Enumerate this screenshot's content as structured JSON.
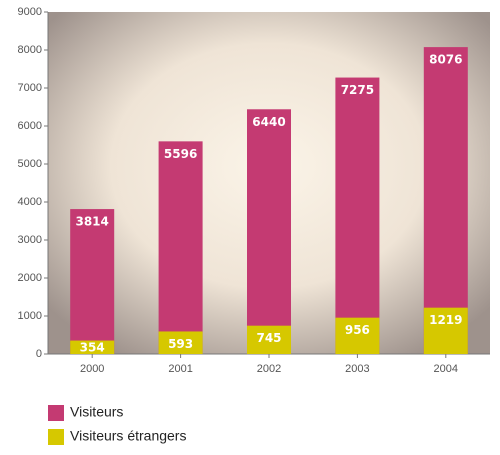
{
  "chart_data": {
    "type": "bar",
    "categories": [
      "2000",
      "2001",
      "2002",
      "2003",
      "2004"
    ],
    "series": [
      {
        "name": "Visiteurs",
        "color": "#c43a72",
        "values": [
          3814,
          5596,
          6440,
          7275,
          8076
        ]
      },
      {
        "name": "Visiteurs étrangers",
        "color": "#d6c800",
        "values": [
          354,
          593,
          745,
          956,
          1219
        ]
      }
    ],
    "ylim": [
      0,
      9000
    ],
    "yticks": [
      0,
      1000,
      2000,
      3000,
      4000,
      5000,
      6000,
      7000,
      8000,
      9000
    ],
    "overlap": true
  }
}
